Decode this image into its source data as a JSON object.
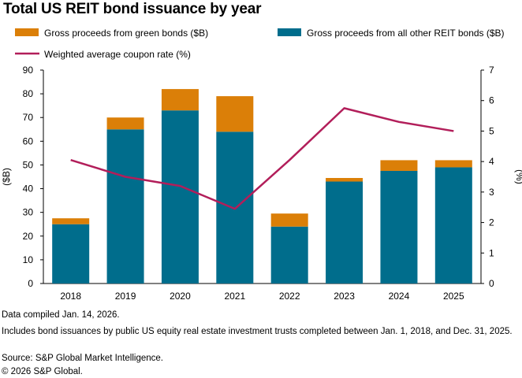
{
  "title": "Total US REIT bond issuance by year",
  "chart_data": {
    "type": "bar",
    "stacked": true,
    "categories": [
      "2018",
      "2019",
      "2020",
      "2021",
      "2022",
      "2023",
      "2024",
      "2025"
    ],
    "series": [
      {
        "name": "Gross proceeds from all other REIT bonds ($B)",
        "axis": "left",
        "color": "#006D8C",
        "values": [
          25,
          65,
          73,
          64,
          24,
          43,
          47.5,
          49
        ]
      },
      {
        "name": "Gross proceeds from green bonds ($B)",
        "axis": "left",
        "color": "#DB7F08",
        "values": [
          2.5,
          5,
          9,
          15,
          5.5,
          1.5,
          4.5,
          3
        ]
      },
      {
        "name": "Weighted average coupon rate (%)",
        "axis": "right",
        "type": "line",
        "color": "#B21E5A",
        "values": [
          4.05,
          3.5,
          3.2,
          2.45,
          4.05,
          5.75,
          5.3,
          5.0
        ]
      }
    ],
    "legend_order": [
      "Gross proceeds from green bonds ($B)",
      "Gross proceeds from all other REIT bonds ($B)",
      "Weighted average coupon rate (%)"
    ],
    "legend_position": "top",
    "ylabel": "($B)",
    "ylim": [
      0,
      90
    ],
    "yticks": [
      "0",
      "10",
      "20",
      "30",
      "40",
      "50",
      "60",
      "70",
      "80",
      "90"
    ],
    "y2label": "(%)",
    "y2lim": [
      0,
      7
    ],
    "y2ticks": [
      "0",
      "1",
      "2",
      "3",
      "4",
      "5",
      "6",
      "7"
    ],
    "grid": false
  },
  "notes": [
    "Data compiled Jan. 14, 2026.",
    "Includes bond issuances by public US equity real estate investment trusts completed between Jan. 1, 2018, and Dec. 31, 2025.",
    "Source: S&P Global Market Intelligence.",
    "© 2026 S&P Global."
  ]
}
